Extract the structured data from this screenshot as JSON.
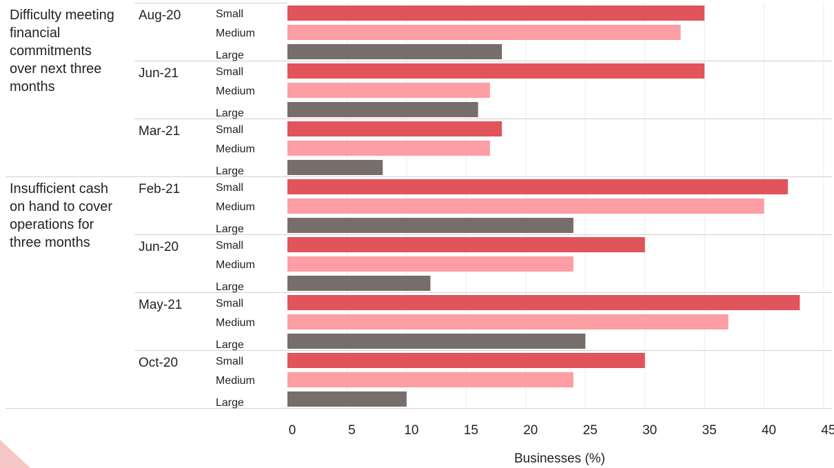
{
  "chart_data": {
    "type": "bar",
    "orientation": "horizontal",
    "xlabel": "Businesses (%)",
    "xlim": [
      0,
      45
    ],
    "xticks": [
      0,
      5,
      10,
      15,
      20,
      25,
      30,
      35,
      40,
      45
    ],
    "grid": true,
    "colors": {
      "Small": "#e1545b",
      "Medium": "#fd9da4",
      "Large": "#776d6a"
    },
    "groups": [
      {
        "label": "Difficulty meeting financial commitments over next three months",
        "label_lines": [
          "Difficulty meeting",
          "financial",
          "commitments",
          "over next three",
          "months"
        ],
        "periods": [
          {
            "period": "Aug-20",
            "bars": [
              {
                "size": "Small",
                "value": 35
              },
              {
                "size": "Medium",
                "value": 33
              },
              {
                "size": "Large",
                "value": 18
              }
            ]
          },
          {
            "period": "Jun-21",
            "bars": [
              {
                "size": "Small",
                "value": 35
              },
              {
                "size": "Medium",
                "value": 17
              },
              {
                "size": "Large",
                "value": 16
              }
            ]
          },
          {
            "period": "Mar-21",
            "bars": [
              {
                "size": "Small",
                "value": 18
              },
              {
                "size": "Medium",
                "value": 17
              },
              {
                "size": "Large",
                "value": 8
              }
            ]
          }
        ]
      },
      {
        "label": "Insufficient cash on hand to cover operations for three months",
        "label_lines": [
          "Insufficient cash",
          "on hand to cover",
          "operations for",
          "three months"
        ],
        "periods": [
          {
            "period": "Feb-21",
            "bars": [
              {
                "size": "Small",
                "value": 42
              },
              {
                "size": "Medium",
                "value": 40
              },
              {
                "size": "Large",
                "value": 24
              }
            ]
          },
          {
            "period": "Jun-20",
            "bars": [
              {
                "size": "Small",
                "value": 30
              },
              {
                "size": "Medium",
                "value": 24
              },
              {
                "size": "Large",
                "value": 12
              }
            ]
          },
          {
            "period": "May-21",
            "bars": [
              {
                "size": "Small",
                "value": 43
              },
              {
                "size": "Medium",
                "value": 37
              },
              {
                "size": "Large",
                "value": 25
              }
            ]
          },
          {
            "period": "Oct-20",
            "bars": [
              {
                "size": "Small",
                "value": 30
              },
              {
                "size": "Medium",
                "value": 24
              },
              {
                "size": "Large",
                "value": 10
              }
            ]
          }
        ]
      }
    ]
  }
}
